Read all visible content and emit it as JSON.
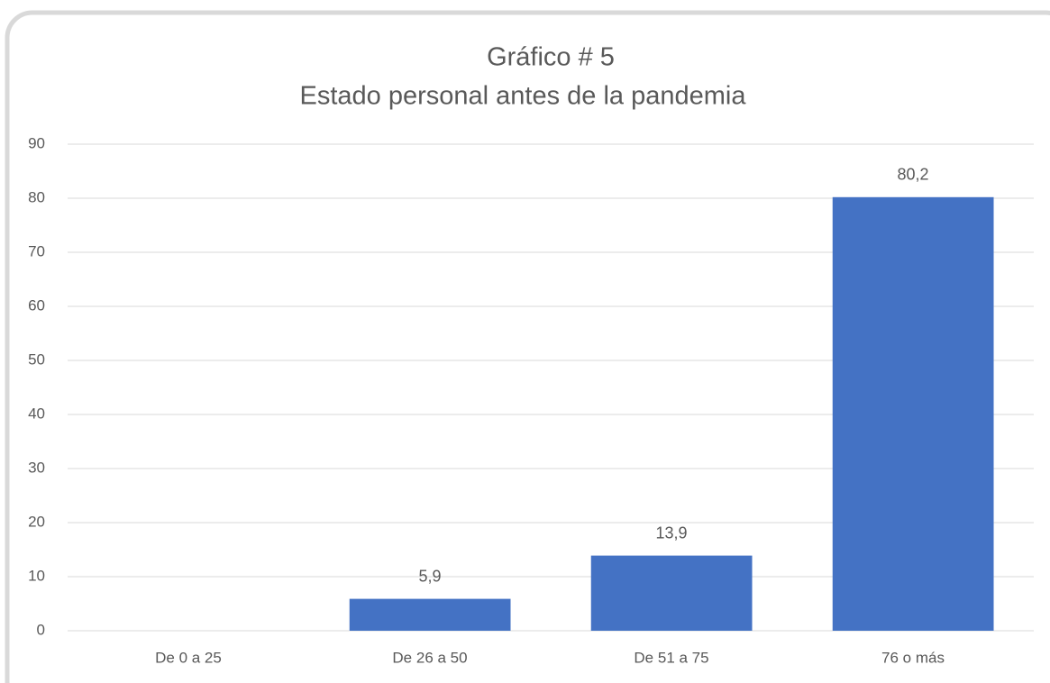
{
  "chart_data": {
    "type": "bar",
    "title": "Gráfico # 5",
    "subtitle": "Estado personal antes de la pandemia",
    "categories": [
      "De 0 a 25",
      "De 26 a 50",
      "De 51 a 75",
      "76 o más"
    ],
    "values": [
      0,
      5.9,
      13.9,
      80.2
    ],
    "value_labels": [
      null,
      "5,9",
      "13,9",
      "80,2"
    ],
    "color": "#4472c4",
    "ylim": [
      0,
      90
    ],
    "yticks": [
      0,
      10,
      20,
      30,
      40,
      50,
      60,
      70,
      80,
      90
    ],
    "grid": true
  }
}
